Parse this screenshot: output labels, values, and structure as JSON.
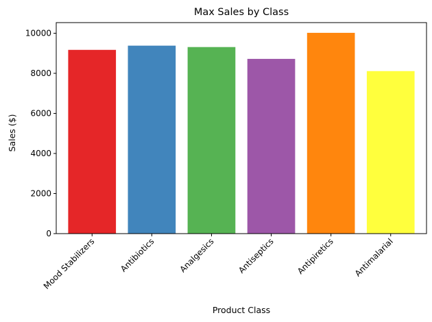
{
  "chart_data": {
    "type": "bar",
    "title": "Max Sales by Class",
    "xlabel": "Product Class",
    "ylabel": "Sales ($)",
    "categories": [
      "Mood Stabilizers",
      "Antibiotics",
      "Analgesics",
      "Antiseptics",
      "Antipiretics",
      "Antimalarial"
    ],
    "values": [
      9170,
      9380,
      9310,
      8720,
      10020,
      8110
    ],
    "colors": [
      "#e41a1c",
      "#377eb8",
      "#4daf4a",
      "#984ea3",
      "#ff7f00",
      "#ffff33"
    ],
    "ylim": [
      0,
      10530
    ],
    "yticks": [
      0,
      2000,
      4000,
      6000,
      8000,
      10000
    ],
    "xtick_rotation": 45,
    "grid": false,
    "legend": "none"
  }
}
